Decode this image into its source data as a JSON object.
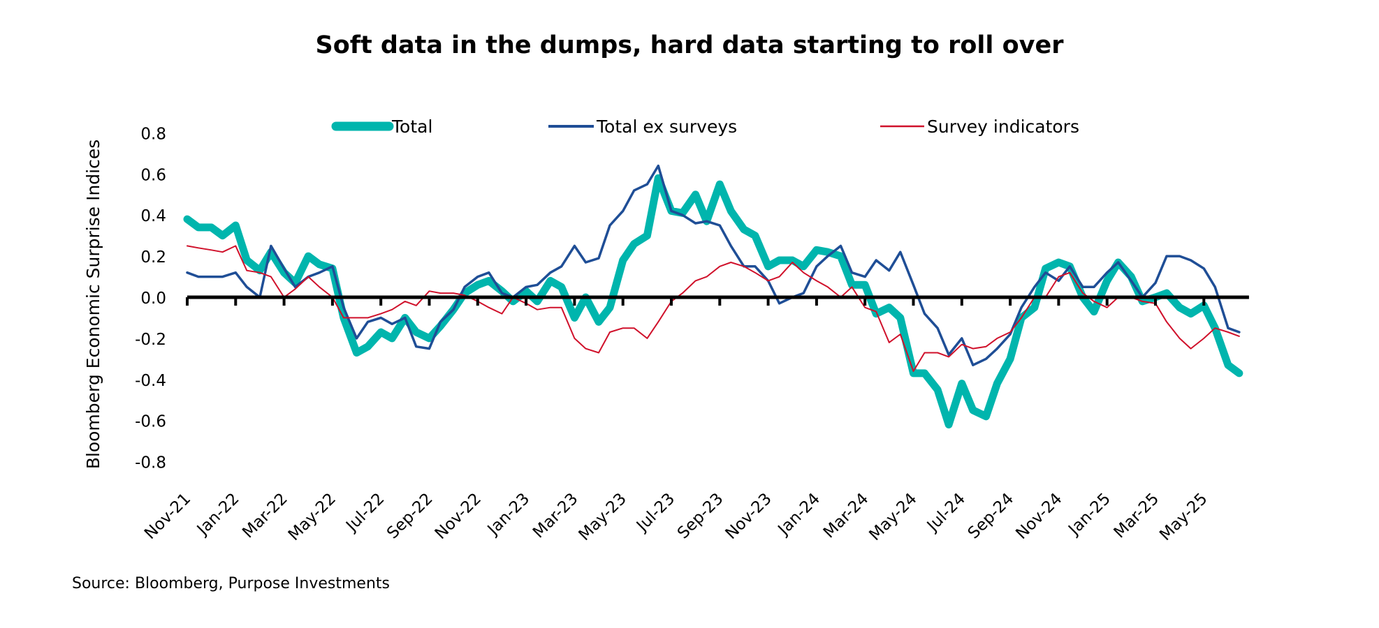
{
  "chart_data": {
    "type": "line",
    "title": "Soft data in the dumps, hard data starting to roll over",
    "ylabel": "Bloomberg Economic Surprise Indices",
    "xlabel": "",
    "source": "Source: Bloomberg, Purpose Investments",
    "ylim": [
      -0.8,
      0.8
    ],
    "yticks": [
      "0.8",
      "0.6",
      "0.4",
      "0.2",
      "0.0",
      "-0.2",
      "-0.4",
      "-0.6",
      "-0.8"
    ],
    "ytick_values": [
      0.8,
      0.6,
      0.4,
      0.2,
      0.0,
      -0.2,
      -0.4,
      -0.6,
      -0.8
    ],
    "xticks": [
      "Nov-21",
      "Jan-22",
      "Mar-22",
      "May-22",
      "Jul-22",
      "Sep-22",
      "Nov-22",
      "Jan-23",
      "Mar-23",
      "May-23",
      "Jul-23",
      "Sep-23",
      "Nov-23",
      "Jan-24",
      "Mar-24",
      "May-24",
      "Jul-24",
      "Sep-24",
      "Nov-24",
      "Jan-25",
      "Mar-25",
      "May-25"
    ],
    "grid": false,
    "legend_position": "top",
    "x": [
      "2021-11-01",
      "2021-11-15",
      "2021-12-01",
      "2021-12-15",
      "2022-01-01",
      "2022-01-15",
      "2022-02-01",
      "2022-02-15",
      "2022-03-01",
      "2022-03-15",
      "2022-04-01",
      "2022-04-15",
      "2022-05-01",
      "2022-05-15",
      "2022-06-01",
      "2022-06-15",
      "2022-07-01",
      "2022-07-15",
      "2022-08-01",
      "2022-08-15",
      "2022-09-01",
      "2022-09-15",
      "2022-10-01",
      "2022-10-15",
      "2022-11-01",
      "2022-11-15",
      "2022-12-01",
      "2022-12-15",
      "2023-01-01",
      "2023-01-15",
      "2023-02-01",
      "2023-02-15",
      "2023-03-01",
      "2023-03-15",
      "2023-04-01",
      "2023-04-15",
      "2023-05-01",
      "2023-05-15",
      "2023-06-01",
      "2023-06-15",
      "2023-07-01",
      "2023-07-15",
      "2023-08-01",
      "2023-08-15",
      "2023-09-01",
      "2023-09-15",
      "2023-10-01",
      "2023-10-15",
      "2023-11-01",
      "2023-11-15",
      "2023-12-01",
      "2023-12-15",
      "2024-01-01",
      "2024-01-15",
      "2024-02-01",
      "2024-02-15",
      "2024-03-01",
      "2024-03-15",
      "2024-04-01",
      "2024-04-15",
      "2024-05-01",
      "2024-05-15",
      "2024-06-01",
      "2024-06-15",
      "2024-07-01",
      "2024-07-15",
      "2024-08-01",
      "2024-08-15",
      "2024-09-01",
      "2024-09-15",
      "2024-10-01",
      "2024-10-15",
      "2024-11-01",
      "2024-11-15",
      "2024-12-01",
      "2024-12-15",
      "2025-01-01",
      "2025-01-15",
      "2025-02-01",
      "2025-02-15",
      "2025-03-01",
      "2025-03-15",
      "2025-04-01",
      "2025-04-15",
      "2025-05-01",
      "2025-05-15",
      "2025-06-01",
      "2025-06-15"
    ],
    "series": [
      {
        "name": "Total",
        "color": "#00B5AD",
        "values": [
          0.38,
          0.34,
          0.34,
          0.3,
          0.35,
          0.18,
          0.13,
          0.22,
          0.12,
          0.07,
          0.2,
          0.16,
          0.14,
          -0.1,
          -0.27,
          -0.24,
          -0.17,
          -0.2,
          -0.1,
          -0.17,
          -0.2,
          -0.14,
          -0.06,
          0.02,
          0.06,
          0.08,
          0.03,
          -0.02,
          0.03,
          -0.02,
          0.08,
          0.05,
          -0.1,
          0.0,
          -0.12,
          -0.05,
          0.18,
          0.26,
          0.3,
          0.58,
          0.42,
          0.41,
          0.5,
          0.37,
          0.55,
          0.42,
          0.33,
          0.3,
          0.15,
          0.18,
          0.18,
          0.15,
          0.23,
          0.22,
          0.2,
          0.06,
          0.06,
          -0.08,
          -0.05,
          -0.1,
          -0.37,
          -0.37,
          -0.45,
          -0.62,
          -0.42,
          -0.55,
          -0.58,
          -0.42,
          -0.3,
          -0.1,
          -0.05,
          0.14,
          0.17,
          0.15,
          0.0,
          -0.07,
          0.08,
          0.17,
          0.1,
          -0.02,
          0.0,
          0.02,
          -0.05,
          -0.08,
          -0.04,
          -0.15,
          -0.33,
          -0.37
        ]
      },
      {
        "name": "Total ex surveys",
        "color": "#1F4E96",
        "values": [
          0.12,
          0.1,
          0.1,
          0.1,
          0.12,
          0.05,
          0.0,
          0.25,
          0.14,
          0.05,
          0.1,
          0.12,
          0.15,
          -0.05,
          -0.2,
          -0.12,
          -0.1,
          -0.13,
          -0.1,
          -0.24,
          -0.25,
          -0.12,
          -0.06,
          0.05,
          0.1,
          0.12,
          0.02,
          0.0,
          0.05,
          0.06,
          0.12,
          0.15,
          0.25,
          0.17,
          0.19,
          0.35,
          0.42,
          0.52,
          0.55,
          0.64,
          0.42,
          0.4,
          0.36,
          0.37,
          0.35,
          0.25,
          0.15,
          0.15,
          0.08,
          -0.03,
          0.0,
          0.02,
          0.15,
          0.2,
          0.25,
          0.12,
          0.1,
          0.18,
          0.13,
          0.22,
          0.06,
          -0.08,
          -0.15,
          -0.28,
          -0.2,
          -0.33,
          -0.3,
          -0.25,
          -0.18,
          -0.05,
          0.05,
          0.12,
          0.08,
          0.15,
          0.05,
          0.05,
          0.12,
          0.17,
          0.08,
          0.0,
          0.07,
          0.2,
          0.2,
          0.18,
          0.14,
          0.05,
          -0.15,
          -0.17
        ]
      },
      {
        "name": "Survey indicators",
        "color": "#D0112B",
        "values": [
          0.25,
          0.24,
          0.23,
          0.22,
          0.25,
          0.13,
          0.12,
          0.1,
          0.0,
          0.04,
          0.1,
          0.05,
          0.0,
          -0.1,
          -0.1,
          -0.1,
          -0.08,
          -0.06,
          -0.02,
          -0.04,
          0.03,
          0.02,
          0.02,
          0.01,
          -0.02,
          -0.05,
          -0.08,
          0.0,
          -0.03,
          -0.06,
          -0.05,
          -0.05,
          -0.2,
          -0.25,
          -0.27,
          -0.17,
          -0.15,
          -0.15,
          -0.2,
          -0.12,
          -0.02,
          0.02,
          0.08,
          0.1,
          0.15,
          0.17,
          0.15,
          0.12,
          0.08,
          0.1,
          0.17,
          0.12,
          0.08,
          0.05,
          0.0,
          0.05,
          -0.05,
          -0.07,
          -0.22,
          -0.18,
          -0.36,
          -0.27,
          -0.27,
          -0.29,
          -0.23,
          -0.25,
          -0.24,
          -0.2,
          -0.17,
          -0.1,
          0.0,
          0.0,
          0.1,
          0.12,
          0.02,
          -0.02,
          -0.05,
          0.0,
          0.0,
          -0.02,
          -0.03,
          -0.12,
          -0.2,
          -0.25,
          -0.2,
          -0.15,
          -0.17,
          -0.19
        ]
      }
    ]
  }
}
